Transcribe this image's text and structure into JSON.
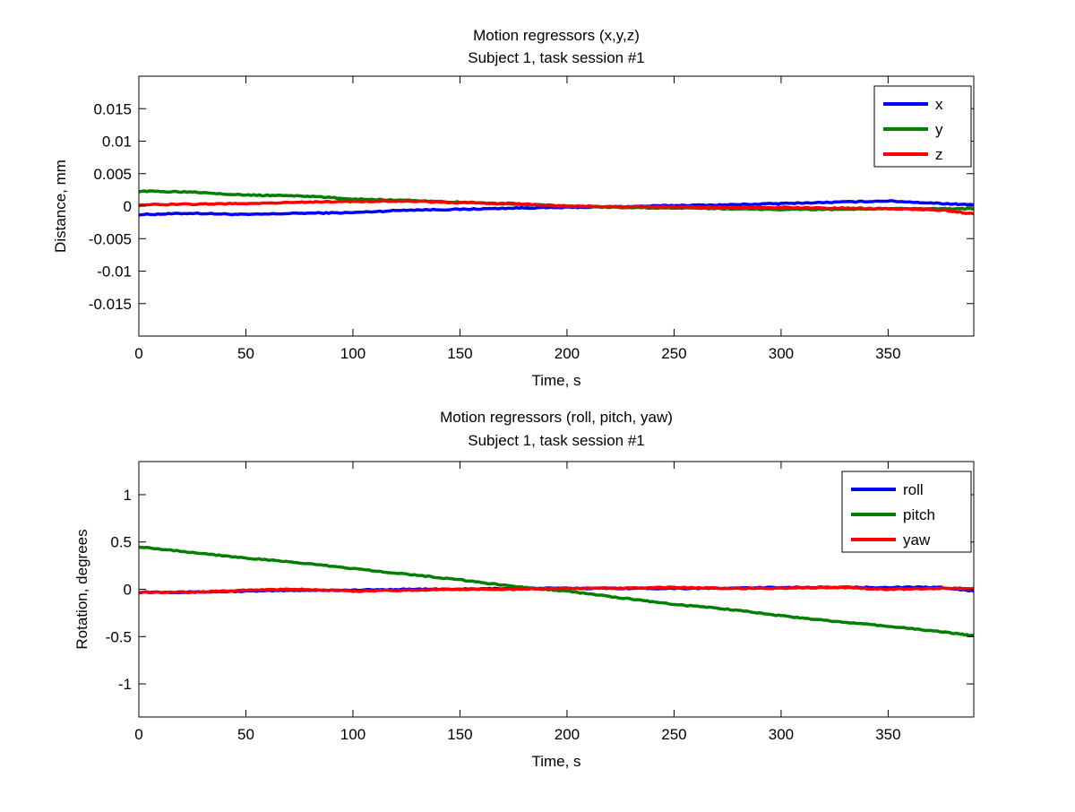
{
  "colors": {
    "blue": "#0000ff",
    "green": "#007f00",
    "red": "#ff0000",
    "axis": "#000000",
    "background": "#ffffff"
  },
  "chart_data": [
    {
      "type": "line",
      "title": [
        "Motion regressors (x,y,z)",
        "Subject 1, task session #1"
      ],
      "xlabel": "Time, s",
      "ylabel": "Distance, mm",
      "xlim": [
        0,
        390
      ],
      "ylim": [
        -0.02,
        0.02
      ],
      "xticks": [
        0,
        50,
        100,
        150,
        200,
        250,
        300,
        350
      ],
      "xtick_labels": [
        "0",
        "50",
        "100",
        "150",
        "200",
        "250",
        "300",
        "350"
      ],
      "yticks": [
        -0.015,
        -0.01,
        -0.005,
        0,
        0.005,
        0.01,
        0.015
      ],
      "ytick_labels": [
        "-0.015",
        "-0.01",
        "-0.005",
        "0",
        "0.005",
        "0.01",
        "0.015"
      ],
      "grid": false,
      "legend_position": "top-right",
      "x": [
        0,
        25,
        50,
        75,
        100,
        125,
        150,
        175,
        200,
        225,
        250,
        275,
        300,
        325,
        350,
        375,
        390
      ],
      "series": [
        {
          "name": "x",
          "color": "#0000ff",
          "values": [
            -0.0013,
            -0.0011,
            -0.0013,
            -0.0011,
            -0.001,
            -0.0006,
            -0.0005,
            -0.0003,
            -0.0002,
            -0.0001,
            0.0001,
            0.0002,
            0.0004,
            0.0006,
            0.0008,
            0.0004,
            0.0002
          ]
        },
        {
          "name": "y",
          "color": "#007f00",
          "values": [
            0.0023,
            0.0022,
            0.0017,
            0.0016,
            0.0011,
            0.0009,
            0.0006,
            0.0003,
            0.0,
            -0.0002,
            -0.0003,
            -0.0004,
            -0.0005,
            -0.0005,
            -0.0004,
            -0.0004,
            -0.0004
          ]
        },
        {
          "name": "z",
          "color": "#ff0000",
          "values": [
            0.0002,
            0.0003,
            0.0004,
            0.0006,
            0.0007,
            0.0008,
            0.0005,
            0.0004,
            0.0,
            -0.0001,
            -0.0001,
            -0.0002,
            -0.0002,
            -0.0003,
            -0.0004,
            -0.0006,
            -0.0012
          ]
        }
      ]
    },
    {
      "type": "line",
      "title": [
        "Motion regressors (roll, pitch, yaw)",
        "Subject 1, task session #1"
      ],
      "xlabel": "Time, s",
      "ylabel": "Rotation, degrees",
      "xlim": [
        0,
        390
      ],
      "ylim": [
        -1.35,
        1.35
      ],
      "xticks": [
        0,
        50,
        100,
        150,
        200,
        250,
        300,
        350
      ],
      "xtick_labels": [
        "0",
        "50",
        "100",
        "150",
        "200",
        "250",
        "300",
        "350"
      ],
      "yticks": [
        -1,
        -0.5,
        0,
        0.5,
        1
      ],
      "ytick_labels": [
        "-1",
        "-0.5",
        "0",
        "0.5",
        "1"
      ],
      "grid": false,
      "legend_position": "top-right",
      "x": [
        0,
        25,
        50,
        75,
        100,
        125,
        150,
        175,
        200,
        225,
        250,
        275,
        300,
        325,
        350,
        375,
        390
      ],
      "series": [
        {
          "name": "roll",
          "color": "#0000ff",
          "values": [
            -0.03,
            -0.03,
            -0.02,
            -0.01,
            -0.01,
            0.0,
            0.0,
            0.01,
            0.01,
            0.01,
            0.01,
            0.01,
            0.02,
            0.02,
            0.02,
            0.02,
            -0.02
          ]
        },
        {
          "name": "pitch",
          "color": "#007f00",
          "values": [
            0.45,
            0.39,
            0.33,
            0.28,
            0.22,
            0.16,
            0.1,
            0.03,
            -0.02,
            -0.09,
            -0.16,
            -0.21,
            -0.28,
            -0.34,
            -0.39,
            -0.45,
            -0.49
          ]
        },
        {
          "name": "yaw",
          "color": "#ff0000",
          "values": [
            -0.03,
            -0.03,
            -0.01,
            0.0,
            -0.02,
            -0.01,
            0.0,
            0.0,
            0.01,
            0.01,
            0.02,
            0.01,
            0.01,
            0.02,
            0.0,
            0.01,
            0.01
          ]
        }
      ]
    }
  ]
}
